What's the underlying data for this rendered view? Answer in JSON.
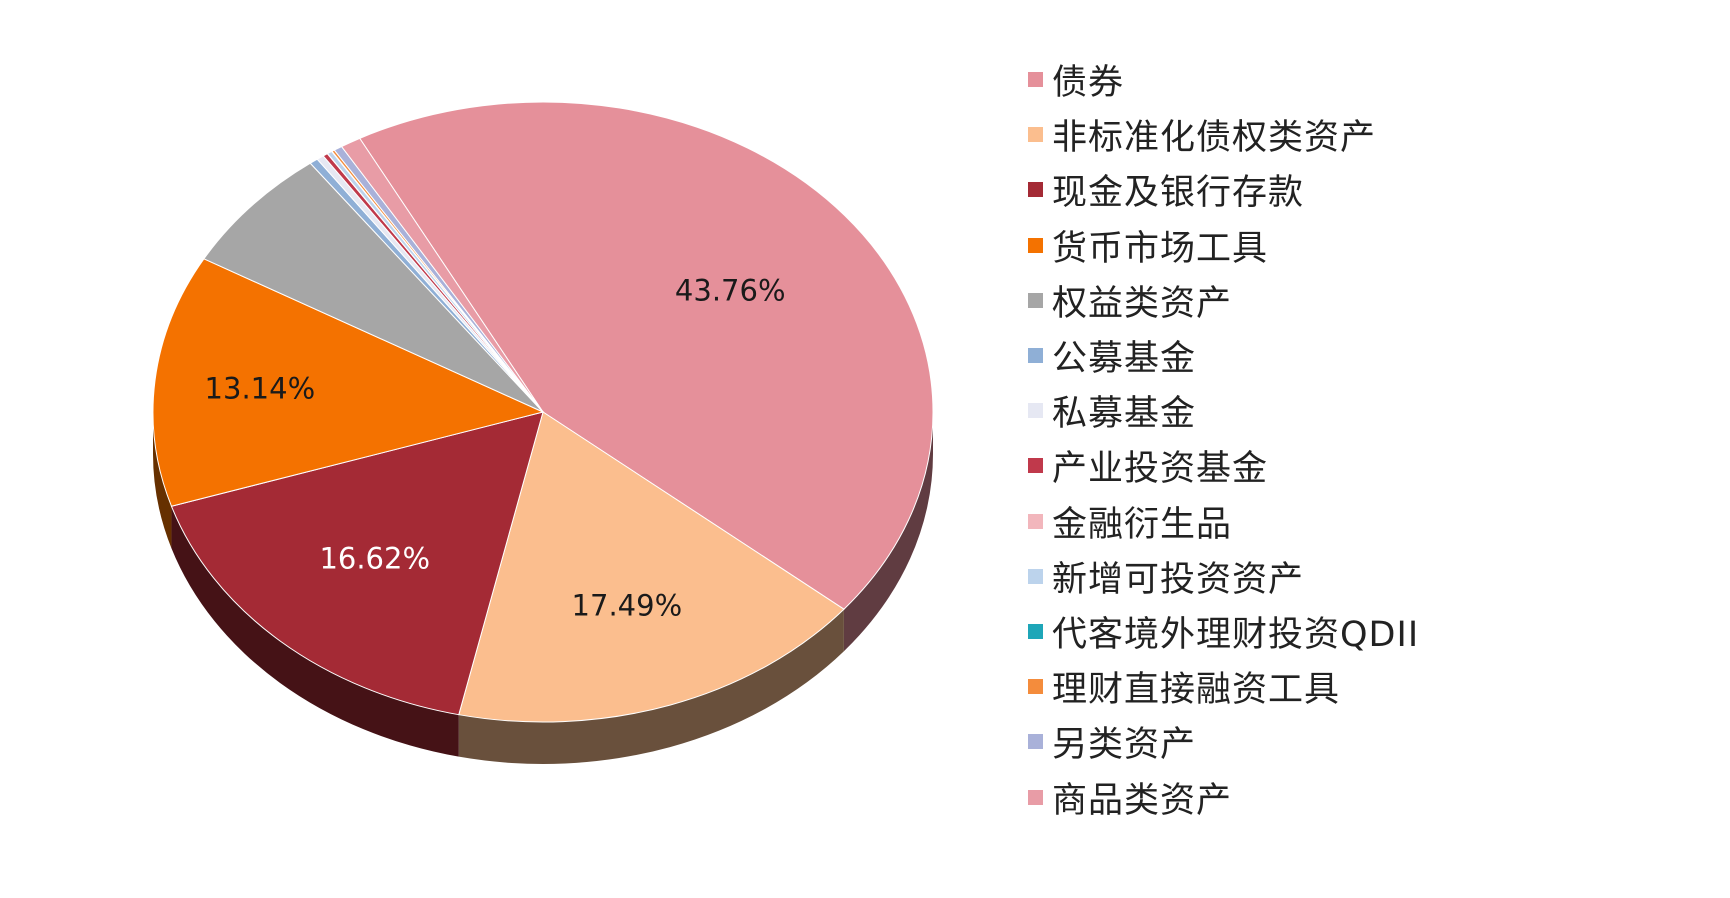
{
  "chart_data": {
    "type": "pie",
    "title": "",
    "categories": [
      "债券",
      "非标准化债权类资产",
      "现金及银行存款",
      "货币市场工具",
      "权益类资产",
      "公募基金",
      "私募基金",
      "产业投资基金",
      "金融衍生品",
      "新增可投资资产",
      "代客境外理财投资QDII",
      "理财直接融资工具",
      "另类资产",
      "商品类资产"
    ],
    "values": [
      43.76,
      17.49,
      16.62,
      13.14,
      6.6,
      0.35,
      0.3,
      0.2,
      0.01,
      0.2,
      0.02,
      0.11,
      0.35,
      0.85
    ],
    "data_labels": [
      "43.76%",
      "17.49%",
      "16.62%",
      "13.14%",
      "",
      "",
      "",
      "",
      "",
      "",
      "",
      "",
      "",
      ""
    ],
    "colors": [
      "#E5909A",
      "#FBBE8E",
      "#A42A35",
      "#F47200",
      "#A6A6A6",
      "#8FAFD6",
      "#E6E8F3",
      "#C0394B",
      "#F2B6BC",
      "#BCD3EC",
      "#1EA6B8",
      "#F48C3C",
      "#A9B1D9",
      "#E89CA6"
    ],
    "label_colors": [
      "dark",
      "dark",
      "light",
      "dark",
      "dark",
      "dark",
      "dark",
      "dark",
      "dark",
      "dark",
      "dark",
      "dark",
      "dark",
      "dark"
    ],
    "legend_position": "right",
    "three_d": true
  }
}
